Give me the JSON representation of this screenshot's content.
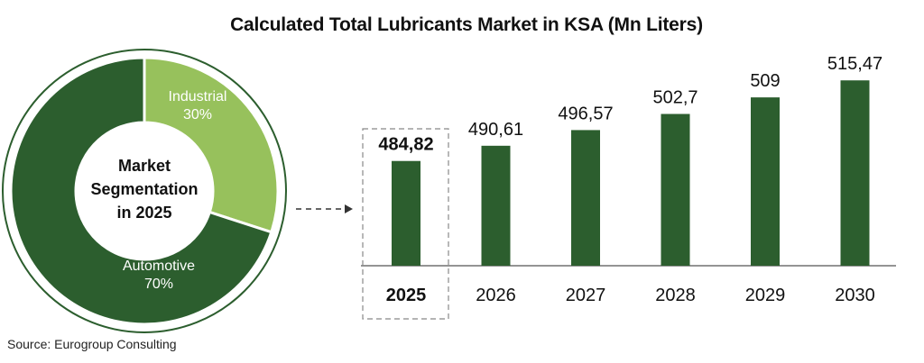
{
  "chart_data": [
    {
      "type": "pie",
      "title": "",
      "center_label": [
        "Market",
        "Segmentation",
        "in 2025"
      ],
      "slices": [
        {
          "name": "Industrial",
          "value": 30,
          "value_label": "30%",
          "color": "#97c15c"
        },
        {
          "name": "Automotive",
          "value": 70,
          "value_label": "70%",
          "color": "#2c5e2e"
        }
      ]
    },
    {
      "type": "bar",
      "title": "Calculated Total Lubricants Market in KSA (Mn Liters)",
      "categories": [
        "2025",
        "2026",
        "2027",
        "2028",
        "2029",
        "2030"
      ],
      "values": [
        484.82,
        490.61,
        496.57,
        502.7,
        509,
        515.47
      ],
      "value_labels": [
        "484,82",
        "490,61",
        "496,57",
        "502,7",
        "509",
        "515,47"
      ],
      "highlight_index": 0,
      "bar_color": "#2c5e2e",
      "ylim": [
        445,
        520
      ],
      "grid": false,
      "xlabel": "",
      "ylabel": ""
    }
  ],
  "source": "Source: Eurogroup Consulting"
}
